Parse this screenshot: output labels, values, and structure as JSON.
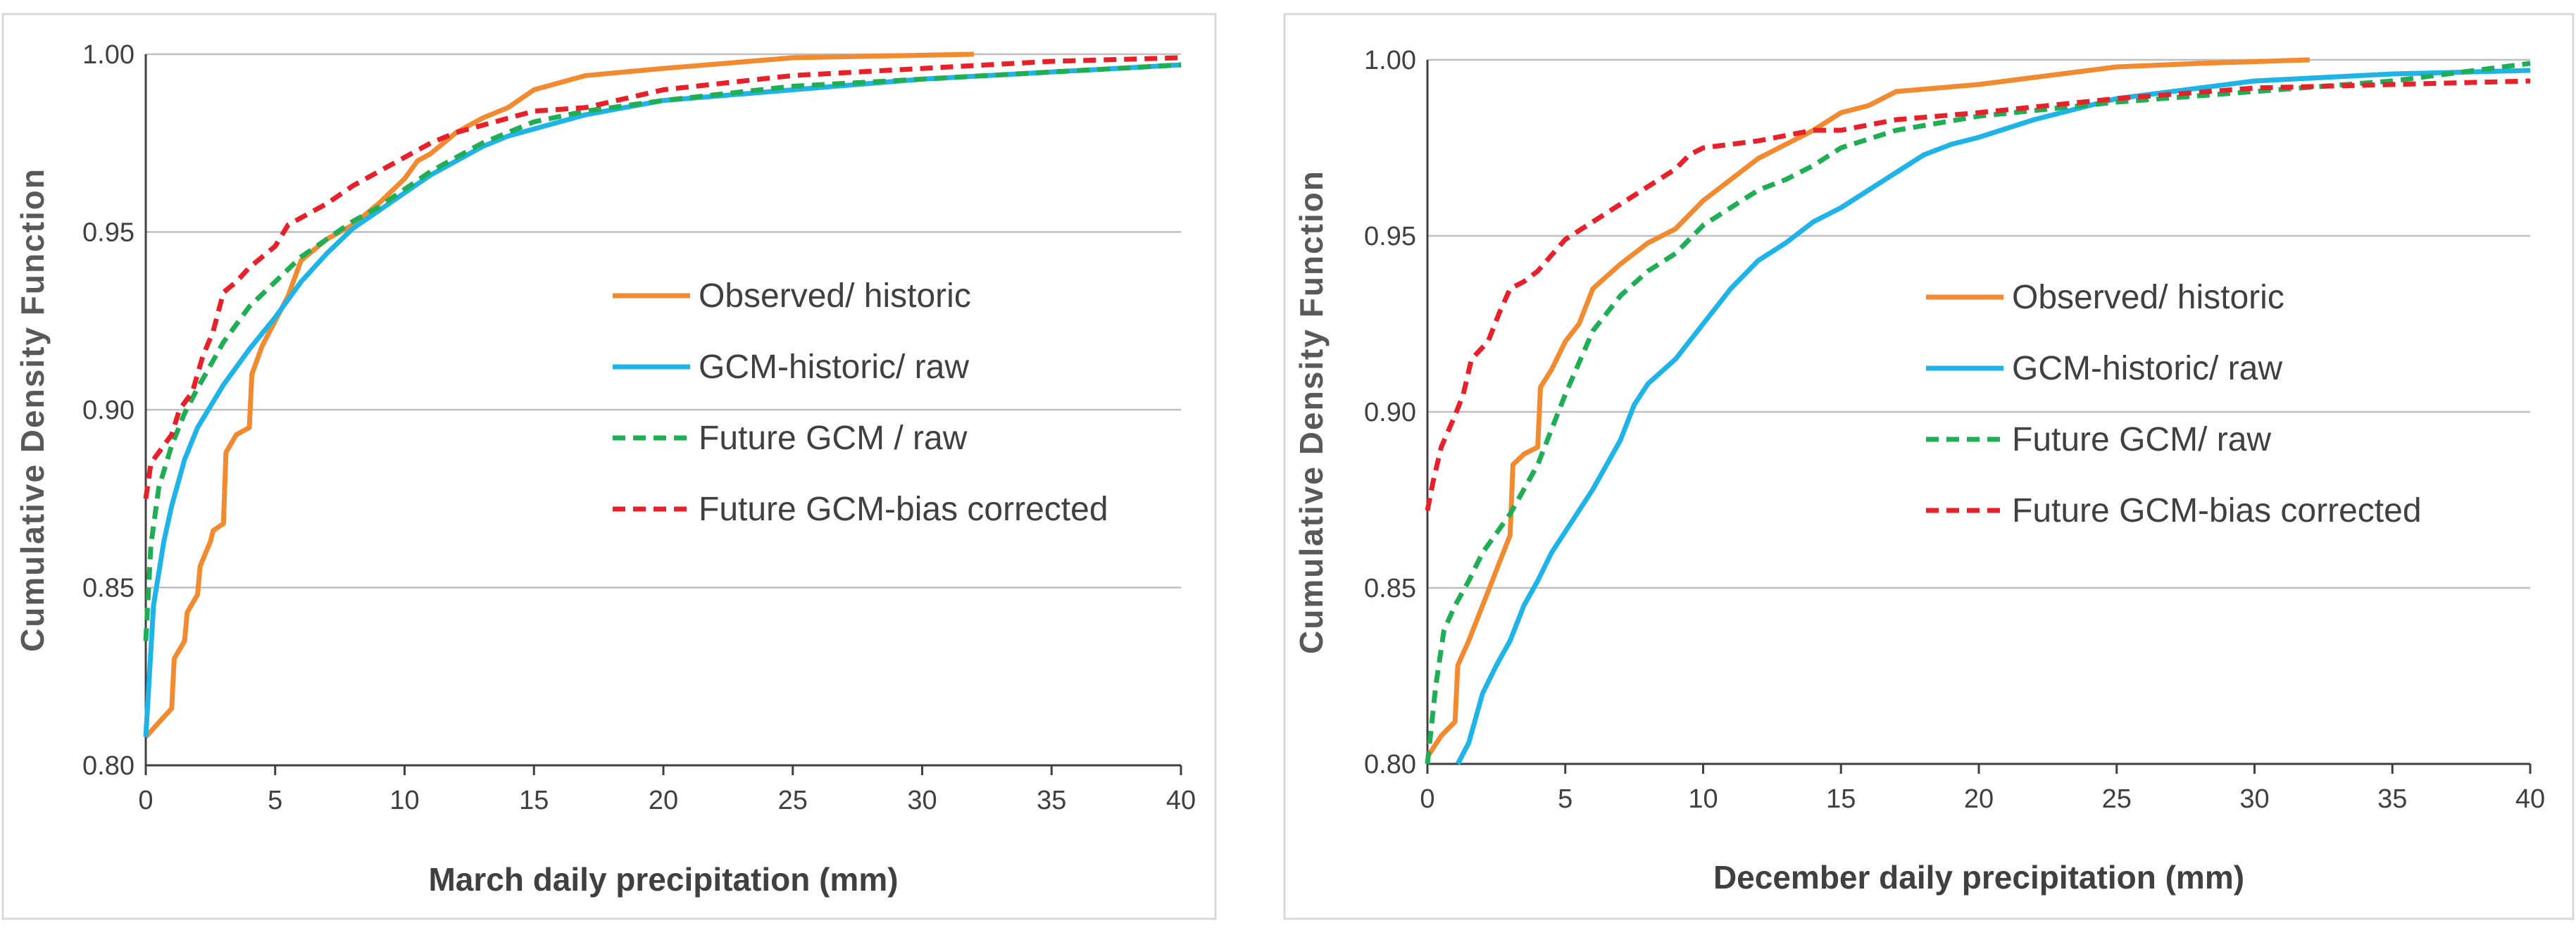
{
  "chart_data": [
    {
      "type": "line",
      "xlabel": "March  daily precipitation (mm)",
      "ylabel": "Cumulative Density Function",
      "xlim": [
        0,
        40
      ],
      "ylim": [
        0.8,
        1.0
      ],
      "x_ticks": [
        "0",
        "5",
        "10",
        "15",
        "20",
        "25",
        "30",
        "35",
        "40"
      ],
      "y_ticks": [
        "0.80",
        "0.85",
        "0.90",
        "0.95",
        "1.00"
      ],
      "grid": true,
      "legend_position": "center-right",
      "series": [
        {
          "name": "Observed/ historic",
          "color": "#f28a30",
          "dash": "solid",
          "points": [
            [
              0,
              0.808
            ],
            [
              0.5,
              0.812
            ],
            [
              1,
              0.816
            ],
            [
              1.1,
              0.83
            ],
            [
              1.5,
              0.835
            ],
            [
              1.6,
              0.843
            ],
            [
              2,
              0.848
            ],
            [
              2.1,
              0.856
            ],
            [
              2.5,
              0.863
            ],
            [
              2.6,
              0.866
            ],
            [
              3,
              0.868
            ],
            [
              3.1,
              0.888
            ],
            [
              3.5,
              0.893
            ],
            [
              4,
              0.895
            ],
            [
              4.1,
              0.91
            ],
            [
              4.5,
              0.918
            ],
            [
              5,
              0.925
            ],
            [
              5.5,
              0.932
            ],
            [
              6,
              0.942
            ],
            [
              7,
              0.948
            ],
            [
              8,
              0.952
            ],
            [
              9,
              0.958
            ],
            [
              10,
              0.965
            ],
            [
              10.5,
              0.97
            ],
            [
              11,
              0.972
            ],
            [
              12,
              0.978
            ],
            [
              13,
              0.982
            ],
            [
              14,
              0.985
            ],
            [
              15,
              0.99
            ],
            [
              16,
              0.992
            ],
            [
              17,
              0.994
            ],
            [
              20,
              0.996
            ],
            [
              25,
              0.999
            ],
            [
              32,
              1.0
            ]
          ]
        },
        {
          "name": "GCM-historic/ raw",
          "color": "#1fb4e8",
          "dash": "solid",
          "points": [
            [
              0,
              0.808
            ],
            [
              0.3,
              0.845
            ],
            [
              0.7,
              0.863
            ],
            [
              1,
              0.873
            ],
            [
              1.5,
              0.886
            ],
            [
              2,
              0.895
            ],
            [
              3,
              0.907
            ],
            [
              4,
              0.917
            ],
            [
              5,
              0.926
            ],
            [
              6,
              0.936
            ],
            [
              7,
              0.944
            ],
            [
              8,
              0.951
            ],
            [
              9,
              0.956
            ],
            [
              10,
              0.961
            ],
            [
              11,
              0.966
            ],
            [
              12,
              0.97
            ],
            [
              13,
              0.974
            ],
            [
              14,
              0.977
            ],
            [
              15,
              0.979
            ],
            [
              17,
              0.983
            ],
            [
              20,
              0.987
            ],
            [
              25,
              0.99
            ],
            [
              30,
              0.993
            ],
            [
              35,
              0.995
            ],
            [
              40,
              0.997
            ]
          ]
        },
        {
          "name": "Future GCM / raw",
          "color": "#1fae53",
          "dash": "dashed",
          "points": [
            [
              0,
              0.835
            ],
            [
              0.2,
              0.862
            ],
            [
              0.5,
              0.878
            ],
            [
              1,
              0.89
            ],
            [
              1.5,
              0.899
            ],
            [
              2,
              0.906
            ],
            [
              3,
              0.919
            ],
            [
              4,
              0.929
            ],
            [
              5,
              0.936
            ],
            [
              6,
              0.943
            ],
            [
              7,
              0.948
            ],
            [
              8,
              0.953
            ],
            [
              9,
              0.957
            ],
            [
              10,
              0.962
            ],
            [
              11,
              0.967
            ],
            [
              12,
              0.971
            ],
            [
              13,
              0.975
            ],
            [
              14,
              0.978
            ],
            [
              15,
              0.981
            ],
            [
              17,
              0.984
            ],
            [
              20,
              0.987
            ],
            [
              25,
              0.991
            ],
            [
              30,
              0.993
            ],
            [
              35,
              0.995
            ],
            [
              40,
              0.997
            ]
          ]
        },
        {
          "name": "Future GCM-bias corrected",
          "color": "#e8202a",
          "dash": "dashed",
          "points": [
            [
              0,
              0.875
            ],
            [
              0.2,
              0.885
            ],
            [
              0.5,
              0.888
            ],
            [
              1,
              0.893
            ],
            [
              1.3,
              0.9
            ],
            [
              1.8,
              0.905
            ],
            [
              2.2,
              0.915
            ],
            [
              2.6,
              0.922
            ],
            [
              3,
              0.933
            ],
            [
              3.5,
              0.936
            ],
            [
              4,
              0.94
            ],
            [
              5,
              0.946
            ],
            [
              5.5,
              0.952
            ],
            [
              6,
              0.954
            ],
            [
              7,
              0.958
            ],
            [
              8,
              0.963
            ],
            [
              9,
              0.967
            ],
            [
              10,
              0.971
            ],
            [
              11,
              0.975
            ],
            [
              12,
              0.978
            ],
            [
              13,
              0.98
            ],
            [
              14,
              0.982
            ],
            [
              15,
              0.984
            ],
            [
              17,
              0.985
            ],
            [
              20,
              0.99
            ],
            [
              25,
              0.994
            ],
            [
              30,
              0.996
            ],
            [
              35,
              0.998
            ],
            [
              40,
              0.999
            ]
          ]
        }
      ]
    },
    {
      "type": "line",
      "xlabel": "December daily precipitation (mm)",
      "ylabel": "Cumulative Density Function",
      "xlim": [
        0,
        40
      ],
      "ylim": [
        0.8,
        1.0
      ],
      "x_ticks": [
        "0",
        "5",
        "10",
        "15",
        "20",
        "25",
        "30",
        "35",
        "40"
      ],
      "y_ticks": [
        "0.80",
        "0.85",
        "0.90",
        "0.95",
        "1.00"
      ],
      "grid": true,
      "legend_position": "center-right",
      "series": [
        {
          "name": "Observed/ historic",
          "color": "#f28a30",
          "dash": "solid",
          "points": [
            [
              0,
              0.802
            ],
            [
              0.5,
              0.808
            ],
            [
              1,
              0.812
            ],
            [
              1.1,
              0.828
            ],
            [
              1.5,
              0.835
            ],
            [
              2,
              0.845
            ],
            [
              2.5,
              0.855
            ],
            [
              3,
              0.865
            ],
            [
              3.1,
              0.885
            ],
            [
              3.5,
              0.888
            ],
            [
              4,
              0.89
            ],
            [
              4.1,
              0.907
            ],
            [
              4.5,
              0.912
            ],
            [
              5,
              0.92
            ],
            [
              5.5,
              0.925
            ],
            [
              6,
              0.935
            ],
            [
              7,
              0.942
            ],
            [
              8,
              0.948
            ],
            [
              9,
              0.952
            ],
            [
              10,
              0.96
            ],
            [
              11,
              0.966
            ],
            [
              12,
              0.972
            ],
            [
              13,
              0.976
            ],
            [
              14,
              0.98
            ],
            [
              15,
              0.985
            ],
            [
              16,
              0.987
            ],
            [
              17,
              0.991
            ],
            [
              20,
              0.993
            ],
            [
              22,
              0.995
            ],
            [
              25,
              0.998
            ],
            [
              28,
              0.999
            ],
            [
              32,
              1.0
            ]
          ]
        },
        {
          "name": "GCM-historic/ raw",
          "color": "#1fb4e8",
          "dash": "solid",
          "points": [
            [
              1.1,
              0.8
            ],
            [
              1.5,
              0.806
            ],
            [
              2,
              0.82
            ],
            [
              2.5,
              0.828
            ],
            [
              3,
              0.835
            ],
            [
              3.5,
              0.845
            ],
            [
              4,
              0.852
            ],
            [
              4.5,
              0.86
            ],
            [
              5,
              0.866
            ],
            [
              6,
              0.878
            ],
            [
              7,
              0.892
            ],
            [
              7.5,
              0.902
            ],
            [
              8,
              0.908
            ],
            [
              9,
              0.915
            ],
            [
              10,
              0.925
            ],
            [
              11,
              0.935
            ],
            [
              12,
              0.943
            ],
            [
              13,
              0.948
            ],
            [
              14,
              0.954
            ],
            [
              15,
              0.958
            ],
            [
              16,
              0.963
            ],
            [
              17,
              0.968
            ],
            [
              18,
              0.973
            ],
            [
              19,
              0.976
            ],
            [
              20,
              0.978
            ],
            [
              22,
              0.983
            ],
            [
              25,
              0.989
            ],
            [
              30,
              0.994
            ],
            [
              35,
              0.996
            ],
            [
              40,
              0.997
            ]
          ]
        },
        {
          "name": "Future GCM/ raw",
          "color": "#1fae53",
          "dash": "dashed",
          "points": [
            [
              0,
              0.8
            ],
            [
              0.3,
              0.822
            ],
            [
              0.6,
              0.838
            ],
            [
              1,
              0.845
            ],
            [
              1.5,
              0.852
            ],
            [
              2,
              0.86
            ],
            [
              3,
              0.871
            ],
            [
              4,
              0.885
            ],
            [
              5,
              0.905
            ],
            [
              6,
              0.923
            ],
            [
              7,
              0.933
            ],
            [
              8,
              0.94
            ],
            [
              9,
              0.945
            ],
            [
              10,
              0.953
            ],
            [
              11,
              0.958
            ],
            [
              12,
              0.963
            ],
            [
              13,
              0.966
            ],
            [
              14,
              0.97
            ],
            [
              15,
              0.975
            ],
            [
              17,
              0.98
            ],
            [
              20,
              0.984
            ],
            [
              25,
              0.988
            ],
            [
              30,
              0.991
            ],
            [
              35,
              0.994
            ],
            [
              39,
              0.998
            ],
            [
              40,
              0.999
            ]
          ]
        },
        {
          "name": "Future GCM-bias corrected",
          "color": "#e8202a",
          "dash": "dashed",
          "points": [
            [
              0,
              0.872
            ],
            [
              0.2,
              0.88
            ],
            [
              0.5,
              0.89
            ],
            [
              1,
              0.899
            ],
            [
              1.3,
              0.905
            ],
            [
              1.6,
              0.915
            ],
            [
              2.2,
              0.92
            ],
            [
              2.6,
              0.928
            ],
            [
              3,
              0.935
            ],
            [
              3.5,
              0.937
            ],
            [
              4,
              0.94
            ],
            [
              5,
              0.949
            ],
            [
              6,
              0.954
            ],
            [
              7,
              0.959
            ],
            [
              8,
              0.964
            ],
            [
              9,
              0.969
            ],
            [
              9.5,
              0.973
            ],
            [
              10,
              0.975
            ],
            [
              12,
              0.977
            ],
            [
              14,
              0.98
            ],
            [
              15,
              0.98
            ],
            [
              17,
              0.983
            ],
            [
              20,
              0.985
            ],
            [
              25,
              0.989
            ],
            [
              30,
              0.992
            ],
            [
              35,
              0.993
            ],
            [
              40,
              0.994
            ]
          ]
        }
      ]
    }
  ]
}
